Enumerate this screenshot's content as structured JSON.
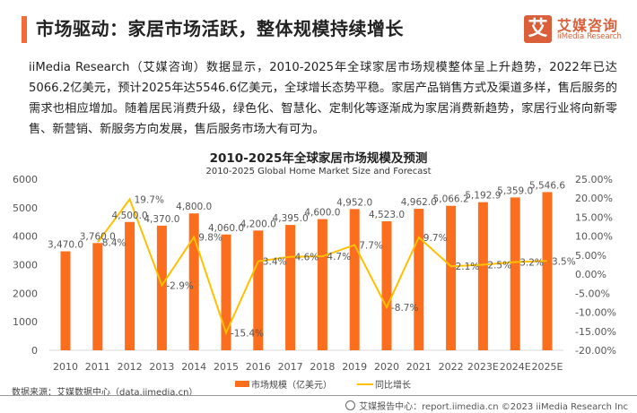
{
  "header": {
    "title": "市场驱动：家居市场活跃，整体规模持续增长",
    "logo_mark": "艾",
    "logo_cn": "艾媒咨询",
    "logo_en": "iiMedia Research"
  },
  "body_text": "iiMedia Research（艾媒咨询）数据显示，2010-2025年全球家居市场规模整体呈上升趋势，2022年已达5066.2亿美元，预计2025年达5546.6亿美元，全球增长态势平稳。家居产品销售方式及渠道多样，售后服务的需求也相应增加。随着居民消费升级，绿色化、智慧化、定制化等逐渐成为家居消费新趋势，家居行业将向新零售、新营销、新服务方向发展，售后服务市场大有可为。",
  "chart_data": {
    "type": "bar",
    "title": "2010-2025年全球家居市场规模及预测",
    "subtitle": "2010-2025 Global Home Market Size and Forecast",
    "categories": [
      "2010",
      "2011",
      "2012",
      "2013",
      "2014",
      "2015",
      "2016",
      "2017",
      "2018",
      "2019",
      "2020",
      "2021",
      "2022",
      "2023E",
      "2024E",
      "2025E"
    ],
    "series": [
      {
        "name": "市场规模（亿美元）",
        "type": "bar",
        "axis": "left",
        "color": "#fa6e1e",
        "values": [
          3470.0,
          3760.0,
          4500.0,
          4370.0,
          4800.0,
          4060.0,
          4200.0,
          4395.0,
          4600.0,
          4952.0,
          4523.0,
          4962.0,
          5066.2,
          5192.9,
          5359.0,
          5546.6
        ],
        "labels": [
          "3,470.0",
          "3,760.0",
          "4,500.0",
          "4,370.0",
          "4,800.0",
          "4,060.0",
          "4,200.0",
          "4,395.0",
          "4,600.0",
          "4,952.0",
          "4,523.0",
          "4,962.0",
          "5,066.2",
          "5,192.9",
          "5,359.0",
          "5,546.6"
        ]
      },
      {
        "name": "同比增长",
        "type": "line",
        "axis": "right",
        "color": "#ffc000",
        "values": [
          null,
          8.4,
          19.7,
          -2.9,
          9.8,
          -15.4,
          3.4,
          4.6,
          4.7,
          7.7,
          -8.7,
          9.7,
          2.1,
          2.5,
          3.2,
          3.5
        ],
        "labels": [
          "",
          "8.4%",
          "19.7%",
          "-2.9%",
          "9.8%",
          "-15.4%",
          "3.4%",
          "4.6%",
          "4.7%",
          "7.7%",
          "-8.7%",
          "9.7%",
          "2.1%",
          "2.5%",
          "3.2%",
          "3.5%"
        ]
      }
    ],
    "y_left": {
      "min": 0,
      "max": 6000,
      "ticks": [
        "0",
        "1000",
        "2000",
        "3000",
        "4000",
        "5000",
        "6000"
      ]
    },
    "y_right": {
      "min": -20,
      "max": 25,
      "ticks": [
        "-20.00%",
        "-15.00%",
        "-10.00%",
        "-5.00%",
        "0.00%",
        "5.00%",
        "10.00%",
        "15.00%",
        "20.00%",
        "25.00%"
      ]
    },
    "grid": false,
    "legend": "bottom-center"
  },
  "legend": {
    "bar_label": "市场规模（亿美元）",
    "line_label": "同比增长"
  },
  "source": "数据来源：艾媒数据中心（data.iimedia.cn）",
  "footer": "艾媒报告中心：report.iimedia.cn   ©2023  iiMedia Research  Inc"
}
